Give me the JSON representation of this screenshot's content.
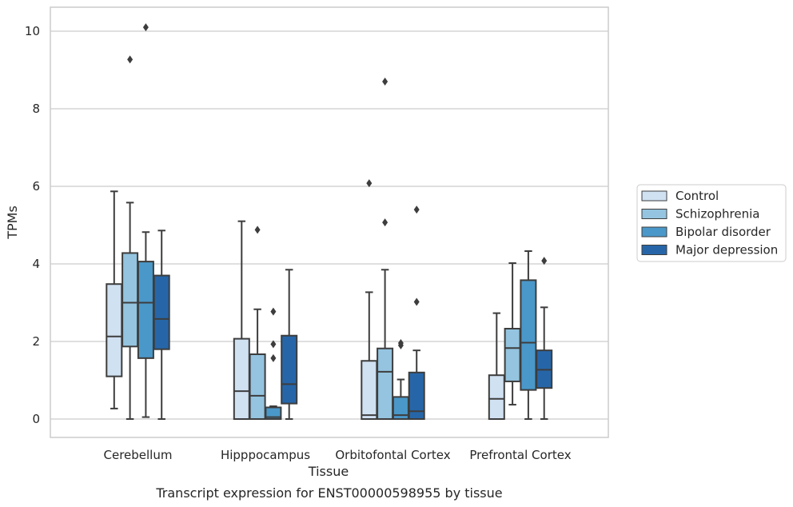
{
  "caption": "Transcript expression for ENST00000598955 by tissue",
  "chart_data": {
    "type": "box",
    "xlabel": "Tissue",
    "ylabel": "TPMs",
    "ylim": [
      -0.5,
      10.6
    ],
    "yticks": [
      "0",
      "2",
      "4",
      "6",
      "8",
      "10"
    ],
    "ytick_values": [
      0,
      2,
      4,
      6,
      8,
      10
    ],
    "grid": "horizontal",
    "legend_position": "right",
    "categories": [
      "Cerebellum",
      "Hipppocampus",
      "Orbitofontal Cortex",
      "Prefrontal Cortex"
    ],
    "series": [
      {
        "name": "Control",
        "color": "#d0e1f2",
        "boxes": [
          {
            "whisker_low": 0.27,
            "q1": 1.1,
            "median": 2.13,
            "q3": 3.48,
            "whisker_high": 5.87,
            "outliers": []
          },
          {
            "whisker_low": 0.0,
            "q1": 0.0,
            "median": 0.72,
            "q3": 2.07,
            "whisker_high": 5.1,
            "outliers": []
          },
          {
            "whisker_low": 0.0,
            "q1": 0.0,
            "median": 0.1,
            "q3": 1.5,
            "whisker_high": 3.27,
            "outliers": [
              6.08
            ]
          },
          {
            "whisker_low": 0.0,
            "q1": 0.0,
            "median": 0.52,
            "q3": 1.13,
            "whisker_high": 2.73,
            "outliers": []
          }
        ]
      },
      {
        "name": "Schizophrenia",
        "color": "#94c4df",
        "boxes": [
          {
            "whisker_low": 0.0,
            "q1": 1.87,
            "median": 3.0,
            "q3": 4.28,
            "whisker_high": 5.58,
            "outliers": [
              9.27
            ]
          },
          {
            "whisker_low": 0.0,
            "q1": 0.0,
            "median": 0.6,
            "q3": 1.67,
            "whisker_high": 2.83,
            "outliers": [
              4.88
            ]
          },
          {
            "whisker_low": 0.0,
            "q1": 0.0,
            "median": 1.22,
            "q3": 1.82,
            "whisker_high": 3.85,
            "outliers": [
              5.07,
              8.7
            ]
          },
          {
            "whisker_low": 0.37,
            "q1": 0.97,
            "median": 1.83,
            "q3": 2.33,
            "whisker_high": 4.02,
            "outliers": []
          }
        ]
      },
      {
        "name": "Bipolar disorder",
        "color": "#4a98c9",
        "boxes": [
          {
            "whisker_low": 0.05,
            "q1": 1.57,
            "median": 3.0,
            "q3": 4.06,
            "whisker_high": 4.82,
            "outliers": [
              10.1
            ]
          },
          {
            "whisker_low": 0.0,
            "q1": 0.0,
            "median": 0.05,
            "q3": 0.3,
            "whisker_high": 0.33,
            "outliers": [
              1.57,
              1.93,
              2.77
            ]
          },
          {
            "whisker_low": 0.0,
            "q1": 0.0,
            "median": 0.1,
            "q3": 0.57,
            "whisker_high": 1.02,
            "outliers": [
              1.9,
              1.96
            ]
          },
          {
            "whisker_low": 0.0,
            "q1": 0.75,
            "median": 1.97,
            "q3": 3.58,
            "whisker_high": 4.33,
            "outliers": []
          }
        ]
      },
      {
        "name": "Major depression",
        "color": "#2666a8",
        "boxes": [
          {
            "whisker_low": 0.0,
            "q1": 1.8,
            "median": 2.58,
            "q3": 3.7,
            "whisker_high": 4.86,
            "outliers": []
          },
          {
            "whisker_low": 0.0,
            "q1": 0.4,
            "median": 0.9,
            "q3": 2.15,
            "whisker_high": 3.85,
            "outliers": []
          },
          {
            "whisker_low": 0.0,
            "q1": 0.0,
            "median": 0.2,
            "q3": 1.2,
            "whisker_high": 1.77,
            "outliers": [
              3.02,
              5.4
            ]
          },
          {
            "whisker_low": 0.0,
            "q1": 0.8,
            "median": 1.27,
            "q3": 1.77,
            "whisker_high": 2.88,
            "outliers": [
              4.08
            ]
          }
        ]
      }
    ]
  }
}
